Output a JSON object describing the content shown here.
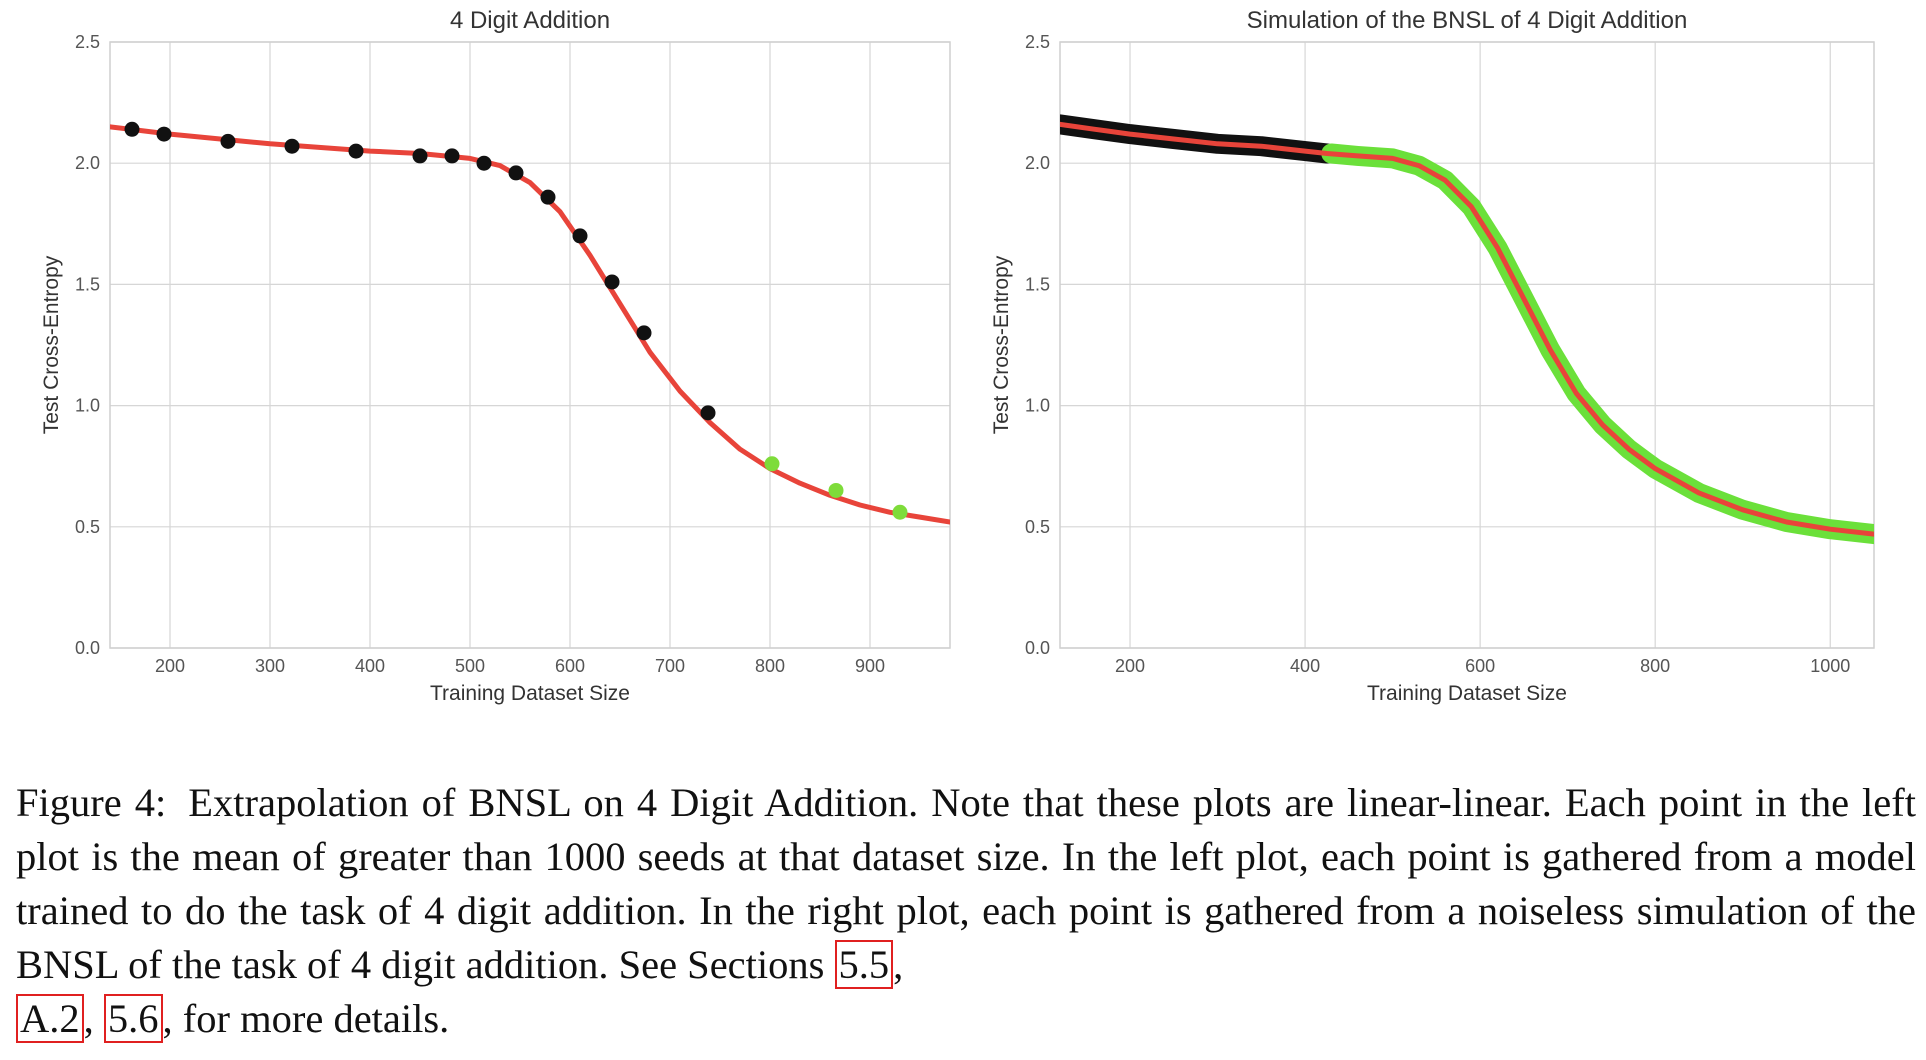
{
  "colors": {
    "fit_line": "#e8443a",
    "observed_point": "#111111",
    "extrapolated_point": "#7edc3a",
    "sim_observed_band": "#111111",
    "sim_extrapolated_band": "#6be03a",
    "reference_box": "#e02020"
  },
  "chart_data": [
    {
      "type": "line",
      "title": "4 Digit Addition",
      "xlabel": "Training Dataset Size",
      "ylabel": "Test Cross-Entropy",
      "xlim": [
        140,
        980
      ],
      "ylim": [
        0,
        2.5
      ],
      "xticks": [
        "200",
        "300",
        "400",
        "500",
        "600",
        "700",
        "800",
        "900"
      ],
      "yticks": [
        "0.0",
        "0.5",
        "1.0",
        "1.5",
        "2.0",
        "2.5"
      ],
      "grid": true,
      "series": [
        {
          "kind": "scatter",
          "role": "observed",
          "x": [
            162,
            194,
            258,
            322,
            386,
            450,
            482,
            514,
            546,
            578,
            610,
            642,
            674,
            738
          ],
          "y": [
            2.14,
            2.12,
            2.09,
            2.07,
            2.05,
            2.03,
            2.03,
            2.0,
            1.96,
            1.86,
            1.7,
            1.51,
            1.3,
            0.97
          ]
        },
        {
          "kind": "scatter",
          "role": "extrapolated",
          "x": [
            802,
            866,
            930
          ],
          "y": [
            0.76,
            0.65,
            0.56
          ]
        },
        {
          "kind": "line",
          "role": "fit",
          "x": [
            140,
            200,
            300,
            400,
            450,
            500,
            530,
            560,
            590,
            620,
            650,
            680,
            710,
            740,
            770,
            800,
            830,
            860,
            890,
            920,
            950,
            980
          ],
          "y": [
            2.15,
            2.12,
            2.08,
            2.05,
            2.04,
            2.02,
            1.99,
            1.92,
            1.8,
            1.62,
            1.42,
            1.22,
            1.06,
            0.93,
            0.82,
            0.74,
            0.68,
            0.63,
            0.59,
            0.56,
            0.54,
            0.52
          ]
        }
      ]
    },
    {
      "type": "line",
      "title": "Simulation of the BNSL of 4 Digit Addition",
      "xlabel": "Training Dataset Size",
      "ylabel": "Test Cross-Entropy",
      "xlim": [
        120,
        1050
      ],
      "ylim": [
        0,
        2.5
      ],
      "xticks": [
        "200",
        "400",
        "600",
        "800",
        "1000"
      ],
      "yticks": [
        "0.0",
        "0.5",
        "1.0",
        "1.5",
        "2.0",
        "2.5"
      ],
      "grid": true,
      "series": [
        {
          "kind": "band",
          "role": "observed",
          "x": [
            120,
            160,
            200,
            250,
            300,
            350,
            400,
            425
          ],
          "y": [
            2.16,
            2.14,
            2.12,
            2.1,
            2.08,
            2.07,
            2.05,
            2.04
          ]
        },
        {
          "kind": "band",
          "role": "extrapolated",
          "x": [
            430,
            460,
            500,
            530,
            560,
            590,
            620,
            650,
            680,
            710,
            740,
            770,
            800,
            850,
            900,
            950,
            1000,
            1050
          ],
          "y": [
            2.04,
            2.03,
            2.02,
            1.99,
            1.93,
            1.82,
            1.65,
            1.44,
            1.23,
            1.05,
            0.92,
            0.82,
            0.74,
            0.64,
            0.57,
            0.52,
            0.49,
            0.47
          ]
        },
        {
          "kind": "line",
          "role": "fit",
          "x": [
            120,
            160,
            200,
            250,
            300,
            350,
            400,
            425,
            460,
            500,
            530,
            560,
            590,
            620,
            650,
            680,
            710,
            740,
            770,
            800,
            850,
            900,
            950,
            1000,
            1050
          ],
          "y": [
            2.16,
            2.14,
            2.12,
            2.1,
            2.08,
            2.07,
            2.05,
            2.04,
            2.03,
            2.02,
            1.99,
            1.93,
            1.82,
            1.65,
            1.44,
            1.23,
            1.05,
            0.92,
            0.82,
            0.74,
            0.64,
            0.57,
            0.52,
            0.49,
            0.47
          ]
        }
      ]
    }
  ],
  "caption": {
    "label": "Figure 4:",
    "text": "Extrapolation of BNSL on 4 Digit Addition. Note that these plots are linear-linear. Each point in the left plot is the mean of greater than 1000 seeds at that dataset size. In the left plot, each point is gathered from a model trained to do the task of 4 digit addition. In the right plot, each point is gathered from a noiseless simulation of the BNSL of the task of 4 digit addition. See Sections",
    "ref1": "5.5",
    "sep1": ",",
    "ref2": "A.2",
    "sep2": ",",
    "ref3": "5.6",
    "tail": ", for more details."
  }
}
